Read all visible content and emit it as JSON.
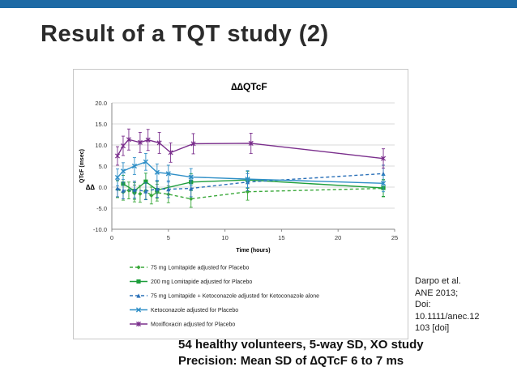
{
  "slide": {
    "title": "Result of a TQT study (2)",
    "citation_lines": [
      "Darpo et al.",
      "ANE 2013;",
      "Doi:",
      "10.1111/anec.12",
      "103 [doi]"
    ],
    "footer_lines": [
      "54 healthy volunteers, 5-way SD, XO study",
      "Precision:  Mean SD of ∆QTcF 6 to 7 ms"
    ],
    "accent_color": "#1d6aa5"
  },
  "chart_data": {
    "type": "line",
    "title": "∆∆QTcF",
    "xlabel": "Time (hours)",
    "ylabel": "QTcF (msec)",
    "ylabel_overlay": "∆∆",
    "xlim": [
      0,
      25
    ],
    "ylim": [
      -10,
      20
    ],
    "x_ticks": [
      "0",
      "5",
      "10",
      "15",
      "20",
      "25"
    ],
    "y_ticks": [
      "-10.0",
      "-5.0",
      "0.0",
      "5.0",
      "10.0",
      "15.0",
      "20.0"
    ],
    "grid": true,
    "legend_position": "bottom",
    "series": [
      {
        "name": "75 mg Lomitapide adjusted for Placebo",
        "color": "#3aa83a",
        "dash": "4,3",
        "marker": "diamond",
        "x": [
          0.5,
          1,
          1.5,
          2,
          2.5,
          3,
          3.5,
          4,
          5,
          7,
          12,
          24
        ],
        "y": [
          -0.5,
          -1.2,
          -0.8,
          -1.5,
          -1.6,
          -0.9,
          -2.0,
          -1.3,
          -1.7,
          -2.8,
          -1.1,
          -0.3
        ],
        "err": [
          2.0,
          1.9,
          2.0,
          2.0,
          2.0,
          2.0,
          2.0,
          2.0,
          2.0,
          2.0,
          2.0,
          2.0
        ]
      },
      {
        "name": "200 mg Lomitapide adjusted for Placebo",
        "color": "#1e9e3c",
        "dash": "",
        "marker": "square",
        "x": [
          1,
          2,
          3,
          4,
          7,
          12,
          24
        ],
        "y": [
          0.8,
          -0.9,
          1.3,
          -0.7,
          1.2,
          1.7,
          -0.2
        ],
        "err": [
          2.0,
          2.0,
          2.0,
          2.0,
          2.0,
          2.0,
          2.0
        ]
      },
      {
        "name": "75 mg Lomitapide + Ketoconazole adjusted for Ketoconazole alone",
        "color": "#2a70b8",
        "dash": "4,3",
        "marker": "triangle",
        "x": [
          0.5,
          1,
          2,
          3,
          4,
          5,
          7,
          12,
          24
        ],
        "y": [
          -0.3,
          -0.8,
          -0.6,
          -1.0,
          -0.4,
          -0.5,
          -0.3,
          1.2,
          3.2
        ],
        "err": [
          2.0,
          2.0,
          2.0,
          2.0,
          2.0,
          2.0,
          2.0,
          2.0,
          2.0
        ]
      },
      {
        "name": "Ketoconazole adjusted for Placebo",
        "color": "#2f8fc7",
        "dash": "",
        "marker": "x",
        "x": [
          0.5,
          1,
          2,
          3,
          4,
          5,
          7,
          12,
          24
        ],
        "y": [
          2.3,
          3.8,
          5.0,
          6.0,
          3.5,
          3.2,
          2.4,
          1.9,
          0.9
        ],
        "err": [
          2.0,
          2.0,
          2.0,
          2.0,
          2.0,
          2.0,
          2.0,
          2.0,
          2.0
        ]
      },
      {
        "name": "Moxifloxacin adjusted for Placebo",
        "color": "#7a2e8c",
        "dash": "",
        "marker": "star",
        "x": [
          0.5,
          1,
          1.5,
          2.5,
          3.2,
          4.2,
          5.2,
          7.2,
          12.3,
          24
        ],
        "y": [
          7.4,
          9.8,
          11.3,
          10.6,
          11.2,
          10.5,
          8.2,
          10.3,
          10.4,
          6.8
        ],
        "err": [
          2.2,
          2.3,
          2.5,
          2.4,
          2.5,
          2.5,
          2.3,
          2.4,
          2.4,
          2.3
        ]
      }
    ]
  }
}
